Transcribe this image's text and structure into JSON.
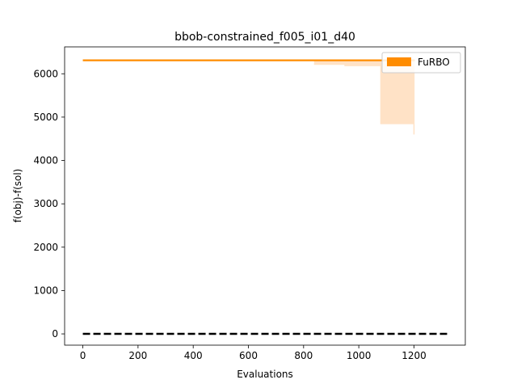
{
  "chart_data": {
    "type": "line",
    "title": "bbob-constrained_f005_i01_d40",
    "xlabel": "Evaluations",
    "ylabel": "f(obj)-f(sol)",
    "xlim": [
      -66,
      1386
    ],
    "ylim": [
      -260,
      6620
    ],
    "xticks": [
      0,
      200,
      400,
      600,
      800,
      1000,
      1200
    ],
    "yticks": [
      0,
      1000,
      2000,
      3000,
      4000,
      5000,
      6000
    ],
    "grid": false,
    "legend": {
      "location": "upper right",
      "entries": [
        "FuRBO"
      ]
    },
    "colors": {
      "furbo": "#ff8c00",
      "band": "#ffe2c6",
      "baseline": "#000000"
    },
    "series": [
      {
        "name": "FuRBO",
        "style": "solid",
        "x": [
          0,
          1200,
          1200
        ],
        "y": [
          6310,
          6310,
          6290
        ]
      },
      {
        "name": "",
        "style": "dashed",
        "x": [
          0,
          1320
        ],
        "y": [
          0,
          0
        ]
      }
    ],
    "band": {
      "series": "FuRBO",
      "x": [
        0,
        840,
        840,
        950,
        950,
        1080,
        1080,
        1200,
        1200
      ],
      "lower": [
        6310,
        6310,
        6220,
        6220,
        6190,
        6190,
        4850,
        4850,
        4600
      ],
      "upper": [
        6310,
        6310,
        6310,
        6310,
        6310,
        6310,
        6310,
        6310,
        6310
      ]
    }
  }
}
